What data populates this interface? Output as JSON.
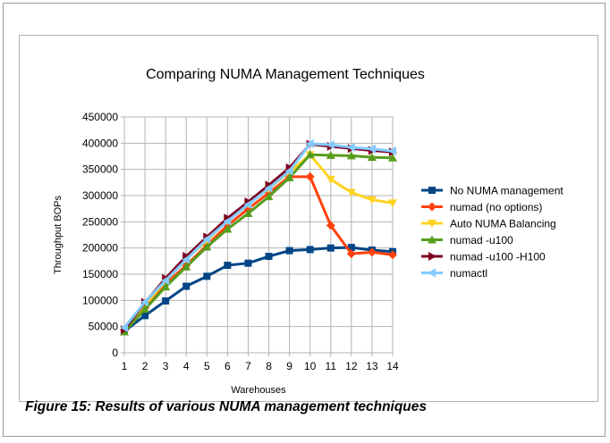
{
  "caption": "Figure 15: Results of various NUMA management techniques",
  "chart_data": {
    "type": "line",
    "title": "Comparing NUMA Management Techniques",
    "xlabel": "Warehouses",
    "ylabel": "Throughput BOPs",
    "x": [
      1,
      2,
      3,
      4,
      5,
      6,
      7,
      8,
      9,
      10,
      11,
      12,
      13,
      14
    ],
    "ylim": [
      0,
      450000
    ],
    "yticks": [
      0,
      50000,
      100000,
      150000,
      200000,
      250000,
      300000,
      350000,
      400000,
      450000
    ],
    "ytick_labels": [
      "0",
      "50000",
      "100000",
      "150000",
      "200000",
      "250000",
      "300000",
      "350000",
      "400000",
      "450000"
    ],
    "grid": true,
    "legend_position": "right",
    "series": [
      {
        "name": "No NUMA management",
        "color": "#004586",
        "marker": "square",
        "values": [
          41000,
          71000,
          99000,
          127000,
          146000,
          167000,
          171000,
          184000,
          195000,
          197000,
          200000,
          201000,
          196000,
          193000
        ]
      },
      {
        "name": "numad (no options)",
        "color": "#ff420e",
        "marker": "diamond",
        "values": [
          43000,
          86000,
          131000,
          167000,
          205000,
          243000,
          275000,
          305000,
          336000,
          336000,
          243000,
          189000,
          192000,
          187000
        ]
      },
      {
        "name": "Auto NUMA Balancing",
        "color": "#ffd320",
        "marker": "triangle-down",
        "values": [
          43000,
          91000,
          137000,
          179000,
          214000,
          252000,
          284000,
          313000,
          345000,
          378000,
          331000,
          306000,
          292000,
          286000
        ]
      },
      {
        "name": "numad -u100",
        "color": "#579d1c",
        "marker": "triangle-up",
        "values": [
          40000,
          83000,
          126000,
          164000,
          202000,
          236000,
          266000,
          298000,
          334000,
          378000,
          377000,
          376000,
          373000,
          372000
        ]
      },
      {
        "name": "numad -u100 -H100",
        "color": "#7e0021",
        "marker": "triangle-right",
        "values": [
          44000,
          96000,
          142000,
          184000,
          221000,
          257000,
          288000,
          320000,
          353000,
          398000,
          394000,
          390000,
          386000,
          383000
        ]
      },
      {
        "name": "numactl",
        "color": "#83caff",
        "marker": "triangle-left",
        "values": [
          48000,
          97000,
          138000,
          178000,
          217000,
          251000,
          283000,
          314000,
          347000,
          399000,
          397000,
          392000,
          389000,
          385000
        ]
      }
    ]
  }
}
